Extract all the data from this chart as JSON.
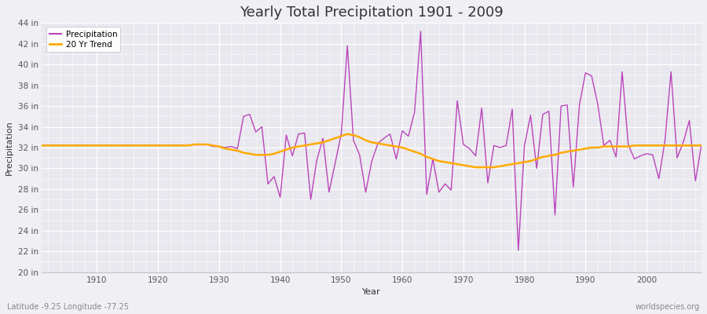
{
  "title": "Yearly Total Precipitation 1901 - 2009",
  "xlabel": "Year",
  "ylabel": "Precipitation",
  "legend_labels": [
    "Precipitation",
    "20 Yr Trend"
  ],
  "precip_color": "#bb44bb",
  "trend_color": "#ffaa00",
  "bg_color": "#f0f0f4",
  "plot_bg_color": "#e8e8ee",
  "grid_color": "#ffffff",
  "ylim": [
    20,
    44
  ],
  "yticks": [
    20,
    22,
    24,
    26,
    28,
    30,
    32,
    34,
    36,
    38,
    40,
    42,
    44
  ],
  "xticks": [
    1910,
    1920,
    1930,
    1940,
    1950,
    1960,
    1970,
    1980,
    1990,
    2000
  ],
  "years": [
    1901,
    1902,
    1903,
    1904,
    1905,
    1906,
    1907,
    1908,
    1909,
    1910,
    1911,
    1912,
    1913,
    1914,
    1915,
    1916,
    1917,
    1918,
    1919,
    1920,
    1921,
    1922,
    1923,
    1924,
    1925,
    1926,
    1927,
    1928,
    1929,
    1930,
    1931,
    1932,
    1933,
    1934,
    1935,
    1936,
    1937,
    1938,
    1939,
    1940,
    1941,
    1942,
    1943,
    1944,
    1945,
    1946,
    1947,
    1948,
    1949,
    1950,
    1951,
    1952,
    1953,
    1954,
    1955,
    1956,
    1957,
    1958,
    1959,
    1960,
    1961,
    1962,
    1963,
    1964,
    1965,
    1966,
    1967,
    1968,
    1969,
    1970,
    1971,
    1972,
    1973,
    1974,
    1975,
    1976,
    1977,
    1978,
    1979,
    1980,
    1981,
    1982,
    1983,
    1984,
    1985,
    1986,
    1987,
    1988,
    1989,
    1990,
    1991,
    1992,
    1993,
    1994,
    1995,
    1996,
    1997,
    1998,
    1999,
    2000,
    2001,
    2002,
    2003,
    2004,
    2005,
    2006,
    2007,
    2008,
    2009
  ],
  "precip": [
    32.2,
    32.2,
    32.2,
    32.2,
    32.2,
    32.2,
    32.2,
    32.2,
    32.2,
    32.2,
    32.2,
    32.2,
    32.2,
    32.2,
    32.2,
    32.2,
    32.2,
    32.2,
    32.2,
    32.2,
    32.2,
    32.2,
    32.2,
    32.2,
    32.2,
    32.3,
    32.3,
    32.3,
    32.1,
    32.1,
    32.0,
    32.1,
    31.9,
    35.0,
    35.2,
    33.5,
    34.0,
    28.5,
    29.2,
    27.2,
    33.2,
    31.2,
    33.3,
    33.4,
    27.0,
    30.8,
    32.9,
    27.7,
    30.5,
    33.3,
    41.8,
    32.7,
    31.3,
    27.7,
    30.7,
    32.4,
    32.9,
    33.3,
    30.9,
    33.6,
    33.1,
    35.4,
    43.2,
    27.5,
    30.9,
    27.7,
    28.5,
    27.9,
    36.5,
    32.3,
    31.9,
    31.2,
    35.8,
    28.6,
    32.2,
    32.0,
    32.2,
    35.7,
    22.1,
    32.2,
    35.1,
    30.0,
    35.2,
    35.5,
    25.5,
    36.0,
    36.1,
    28.2,
    36.1,
    39.2,
    38.9,
    36.2,
    32.2,
    32.7,
    31.1,
    39.3,
    32.3,
    30.9,
    31.2,
    31.4,
    31.3,
    29.0,
    32.6,
    39.3,
    31.0,
    32.5,
    34.6,
    28.8,
    32.3
  ],
  "trend": [
    32.2,
    32.2,
    32.2,
    32.2,
    32.2,
    32.2,
    32.2,
    32.2,
    32.2,
    32.2,
    32.2,
    32.2,
    32.2,
    32.2,
    32.2,
    32.2,
    32.2,
    32.2,
    32.2,
    32.2,
    32.2,
    32.2,
    32.2,
    32.2,
    32.2,
    32.3,
    32.3,
    32.3,
    32.2,
    32.1,
    31.9,
    31.8,
    31.7,
    31.5,
    31.4,
    31.3,
    31.3,
    31.3,
    31.4,
    31.6,
    31.8,
    32.0,
    32.1,
    32.2,
    32.3,
    32.4,
    32.5,
    32.7,
    32.9,
    33.1,
    33.3,
    33.2,
    33.0,
    32.7,
    32.5,
    32.4,
    32.3,
    32.2,
    32.1,
    32.0,
    31.8,
    31.6,
    31.4,
    31.1,
    30.9,
    30.7,
    30.6,
    30.5,
    30.4,
    30.3,
    30.2,
    30.1,
    30.1,
    30.1,
    30.1,
    30.2,
    30.3,
    30.4,
    30.5,
    30.6,
    30.7,
    30.9,
    31.1,
    31.2,
    31.3,
    31.5,
    31.6,
    31.7,
    31.8,
    31.9,
    32.0,
    32.0,
    32.1,
    32.1,
    32.1,
    32.1,
    32.1,
    32.2,
    32.2,
    32.2,
    32.2,
    32.2,
    32.2,
    32.2,
    32.2,
    32.2,
    32.2,
    32.2,
    32.2
  ],
  "footer_left": "Latitude -9.25 Longitude -77.25",
  "footer_right": "worldspecies.org"
}
